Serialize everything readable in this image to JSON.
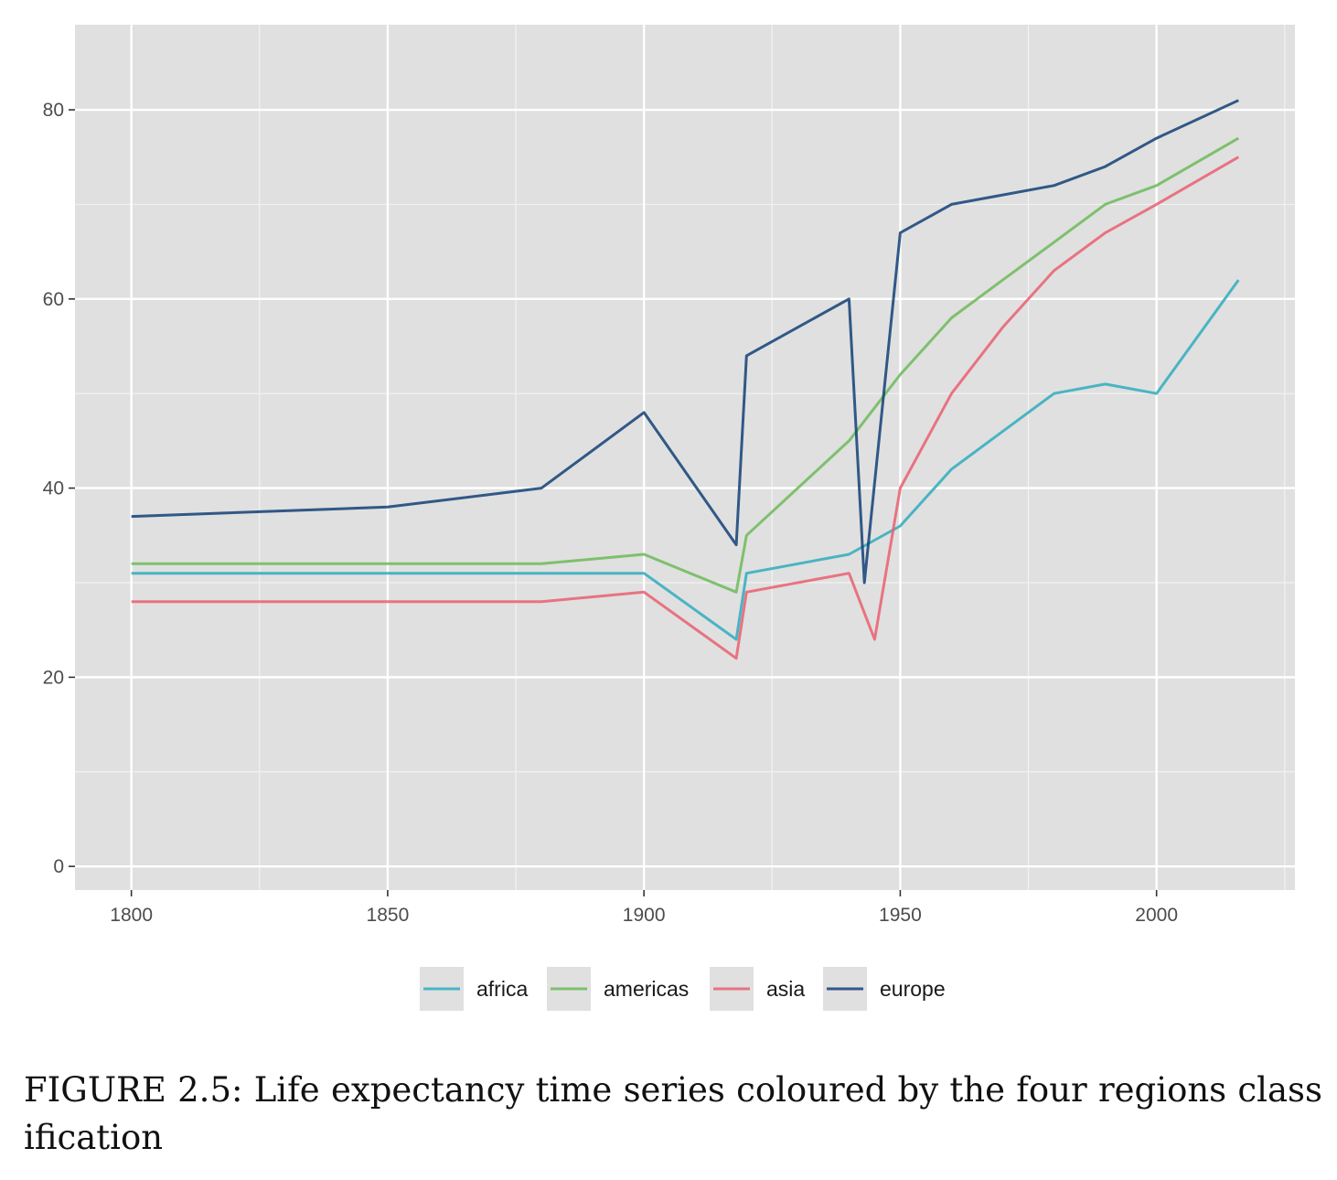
{
  "caption": "FIGURE 2.5: Life expectancy time series coloured by the four regions classification",
  "chart_data": {
    "type": "line",
    "title": "",
    "xlabel": "",
    "ylabel": "",
    "xlim": [
      1789,
      2027
    ],
    "ylim": [
      -2.5,
      89
    ],
    "x_ticks": [
      1800,
      1850,
      1900,
      1950,
      2000
    ],
    "y_ticks": [
      0,
      20,
      40,
      60,
      80
    ],
    "grid": true,
    "legend_position": "bottom",
    "series_note": "",
    "series": [
      {
        "name": "africa",
        "color": "#2eacbd",
        "x": [
          1800,
          1850,
          1880,
          1900,
          1918,
          1920,
          1940,
          1950,
          1960,
          1970,
          1980,
          1990,
          2000,
          2016
        ],
        "y": [
          31,
          31,
          31,
          31,
          24,
          31,
          33,
          36,
          42,
          46,
          50,
          51,
          50,
          62
        ]
      },
      {
        "name": "americas",
        "color": "#6cba58",
        "x": [
          1800,
          1850,
          1880,
          1900,
          1918,
          1920,
          1940,
          1950,
          1960,
          1970,
          1980,
          1990,
          2000,
          2016
        ],
        "y": [
          32,
          32,
          32,
          33,
          29,
          35,
          45,
          52,
          58,
          62,
          66,
          70,
          72,
          77
        ]
      },
      {
        "name": "asia",
        "color": "#e95f70",
        "x": [
          1800,
          1850,
          1880,
          1900,
          1918,
          1920,
          1940,
          1945,
          1950,
          1960,
          1970,
          1980,
          1990,
          2000,
          2016
        ],
        "y": [
          28,
          28,
          28,
          29,
          22,
          29,
          31,
          24,
          40,
          50,
          57,
          63,
          67,
          70,
          75
        ]
      },
      {
        "name": "europe",
        "color": "#123f75",
        "x": [
          1800,
          1850,
          1880,
          1900,
          1918,
          1920,
          1940,
          1943,
          1950,
          1960,
          1970,
          1980,
          1990,
          2000,
          2016
        ],
        "y": [
          37,
          38,
          40,
          48,
          34,
          54,
          60,
          30,
          67,
          70,
          71,
          72,
          74,
          77,
          81
        ]
      }
    ]
  }
}
